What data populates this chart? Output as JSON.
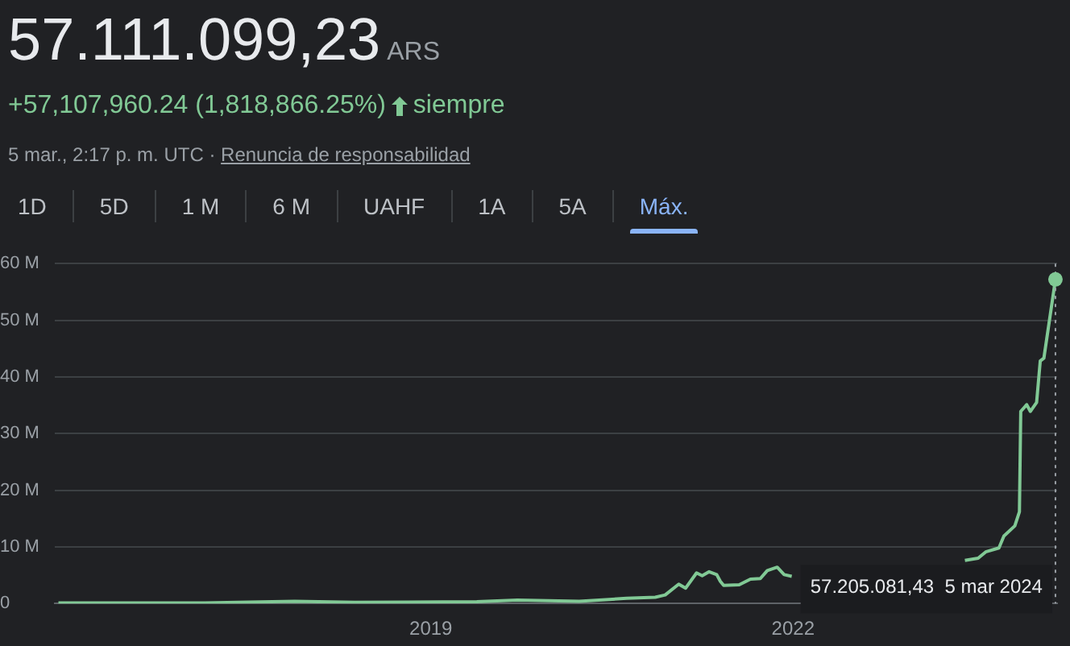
{
  "chart_data": {
    "type": "line",
    "title": "57.111.099,23",
    "subtitle": "ARS",
    "annotations": [
      "+57,107,960.24 (1,818,866.25%)",
      "siempre",
      "5 mar., 2:17 p. m. UTC ·",
      "Renuncia de responsabilidad",
      "1D",
      "5D",
      "1 M",
      "6 M",
      "UAHF",
      "1A",
      "5A",
      "Máx.",
      "57.205.081,43  5 mar 2024"
    ],
    "x": [
      "2015-12-01",
      "2017-02-15",
      "2017-11-15",
      "2018-05-15",
      "2019-05-20",
      "2019-09-20",
      "2020-03-25",
      "2020-08-15",
      "2020-11-10",
      "2020-12-10",
      "2021-01-20",
      "2021-02-10",
      "2021-03-15",
      "2021-04-01",
      "2021-04-22",
      "2021-05-15",
      "2021-05-26",
      "2021-06-05",
      "2021-07-22",
      "2021-08-25",
      "2021-09-24",
      "2021-10-15",
      "2021-11-14",
      "2021-12-05",
      "2021-12-28",
      "2022-08-01",
      "2023-06-05",
      "2023-07-15",
      "2023-08-07",
      "2023-09-16",
      "2023-10-01",
      "2023-11-03",
      "2023-11-17",
      "2023-11-21",
      "2023-12-09",
      "2023-12-20",
      "2024-01-08",
      "2024-01-19",
      "2024-01-30",
      "2024-03-05"
    ],
    "series": [
      {
        "color": "#81c995",
        "values": [
          0.1,
          0.1,
          0.4,
          0.2,
          0.3,
          0.6,
          0.4,
          0.9,
          1.1,
          1.5,
          3.4,
          2.7,
          5.4,
          4.9,
          5.6,
          5.1,
          3.9,
          3.2,
          3.3,
          4.3,
          4.4,
          5.8,
          6.4,
          5.1,
          4.8,
          null,
          7.6,
          8.0,
          9.1,
          9.8,
          11.9,
          13.7,
          16.2,
          33.9,
          35.1,
          33.9,
          35.5,
          42.8,
          43.3,
          57.205081
        ]
      }
    ],
    "xlim": [
      "2015-11-20",
      "2024-03-10"
    ],
    "xticks": [
      "2019",
      "2022"
    ],
    "ylim": [
      0,
      60
    ],
    "yticks": [
      0,
      {
        "value": 10,
        "label": "10 M"
      },
      {
        "value": 20,
        "label": "20 M"
      },
      {
        "value": 30,
        "label": "30 M"
      },
      {
        "value": 40,
        "label": "40 M"
      },
      {
        "value": 50,
        "label": "50 M"
      },
      {
        "value": 60,
        "label": "60 M"
      }
    ],
    "ref_lines": [
      {
        "axis": "x",
        "value": "2024-03-05",
        "line_style": "dotted",
        "color": "#9aa0a6"
      }
    ],
    "grid": "y",
    "marker": "none",
    "line_style": "solid",
    "legend": false
  }
}
